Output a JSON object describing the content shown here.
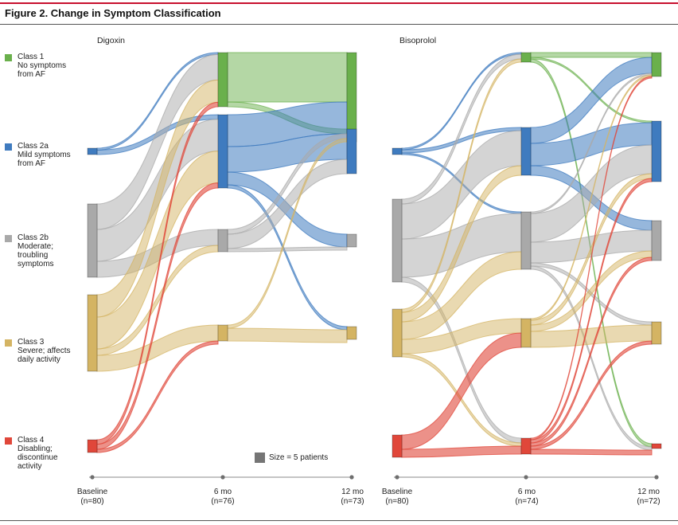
{
  "figure": {
    "title": "Figure 2. Change in Symptom Classification"
  },
  "legend": [
    {
      "key": "class1",
      "name": "Class 1",
      "desc": "No symptoms\nfrom AF",
      "color": "#6ab04c"
    },
    {
      "key": "class2a",
      "name": "Class 2a",
      "desc": "Mild symptoms\nfrom AF",
      "color": "#3f7bbf"
    },
    {
      "key": "class2b",
      "name": "Class 2b",
      "desc": "Moderate;\ntroubling\nsymptoms",
      "color": "#a9a9a9"
    },
    {
      "key": "class3",
      "name": "Class 3",
      "desc": "Severe; affects\ndaily activity",
      "color": "#d4b463"
    },
    {
      "key": "class4",
      "name": "Class 4",
      "desc": "Disabling;\ndiscontinue\nactivity",
      "color": "#e0473a"
    }
  ],
  "size_note": "Size = 5 patients",
  "chart_data": [
    {
      "type": "sankey",
      "title": "Digoxin",
      "stages": [
        {
          "name": "Baseline",
          "n": "(n=80)"
        },
        {
          "name": "6 mo",
          "n": "(n=76)"
        },
        {
          "name": "12 mo",
          "n": "(n=73)"
        }
      ],
      "nodes": [
        [
          {
            "cls": "class1",
            "value": 0
          },
          {
            "cls": "class2a",
            "value": 2
          },
          {
            "cls": "class2b",
            "value": 23
          },
          {
            "cls": "class3",
            "value": 24
          },
          {
            "cls": "class4",
            "value": 4
          }
        ],
        [
          {
            "cls": "class1",
            "value": 17
          },
          {
            "cls": "class2a",
            "value": 23
          },
          {
            "cls": "class2b",
            "value": 7
          },
          {
            "cls": "class3",
            "value": 5
          },
          {
            "cls": "class4",
            "value": 0
          }
        ],
        [
          {
            "cls": "class1",
            "value": 28
          },
          {
            "cls": "class2a",
            "value": 14
          },
          {
            "cls": "class2b",
            "value": 4
          },
          {
            "cls": "class3",
            "value": 4
          },
          {
            "cls": "class4",
            "value": 0
          }
        ]
      ],
      "flows": [
        [
          {
            "from": "class2a",
            "to": "class1",
            "value": 0.6
          },
          {
            "from": "class2a",
            "to": "class2a",
            "value": 1.4
          },
          {
            "from": "class2b",
            "to": "class1",
            "value": 8
          },
          {
            "from": "class2b",
            "to": "class2a",
            "value": 10
          },
          {
            "from": "class2b",
            "to": "class2b",
            "value": 5
          },
          {
            "from": "class3",
            "to": "class1",
            "value": 7
          },
          {
            "from": "class3",
            "to": "class2a",
            "value": 10
          },
          {
            "from": "class3",
            "to": "class2b",
            "value": 2
          },
          {
            "from": "class3",
            "to": "class3",
            "value": 5
          },
          {
            "from": "class4",
            "to": "class1",
            "value": 1.4
          },
          {
            "from": "class4",
            "to": "class2a",
            "value": 1.6
          },
          {
            "from": "class4",
            "to": "class3",
            "value": 1
          }
        ],
        [
          {
            "from": "class1",
            "to": "class1",
            "value": 15.5
          },
          {
            "from": "class1",
            "to": "class2a",
            "value": 1.5
          },
          {
            "from": "class2a",
            "to": "class1",
            "value": 10
          },
          {
            "from": "class2a",
            "to": "class2a",
            "value": 8
          },
          {
            "from": "class2a",
            "to": "class2b",
            "value": 4
          },
          {
            "from": "class2a",
            "to": "class3",
            "value": 1
          },
          {
            "from": "class2b",
            "to": "class1",
            "value": 1.5
          },
          {
            "from": "class2b",
            "to": "class2a",
            "value": 4.5
          },
          {
            "from": "class2b",
            "to": "class2b",
            "value": 1
          },
          {
            "from": "class3",
            "to": "class1",
            "value": 1
          },
          {
            "from": "class3",
            "to": "class3",
            "value": 4
          }
        ]
      ]
    },
    {
      "type": "sankey",
      "title": "Bisoprolol",
      "stages": [
        {
          "name": "Baseline",
          "n": "(n=80)"
        },
        {
          "name": "6 mo",
          "n": "(n=74)"
        },
        {
          "name": "12 mo",
          "n": "(n=72)"
        }
      ],
      "nodes": [
        [
          {
            "cls": "class1",
            "value": 0
          },
          {
            "cls": "class2a",
            "value": 2
          },
          {
            "cls": "class2b",
            "value": 26
          },
          {
            "cls": "class3",
            "value": 15
          },
          {
            "cls": "class4",
            "value": 7
          }
        ],
        [
          {
            "cls": "class1",
            "value": 3
          },
          {
            "cls": "class2a",
            "value": 15
          },
          {
            "cls": "class2b",
            "value": 18
          },
          {
            "cls": "class3",
            "value": 9
          },
          {
            "cls": "class4",
            "value": 5
          }
        ],
        [
          {
            "cls": "class1",
            "value": 7.5
          },
          {
            "cls": "class2a",
            "value": 19
          },
          {
            "cls": "class2b",
            "value": 12.5
          },
          {
            "cls": "class3",
            "value": 7
          },
          {
            "cls": "class4",
            "value": 1.5
          }
        ]
      ],
      "flows": [
        [
          {
            "from": "class2a",
            "to": "class1",
            "value": 0.5
          },
          {
            "from": "class2a",
            "to": "class2a",
            "value": 1
          },
          {
            "from": "class2a",
            "to": "class2b",
            "value": 0.5
          },
          {
            "from": "class2b",
            "to": "class1",
            "value": 1.5
          },
          {
            "from": "class2b",
            "to": "class2a",
            "value": 11
          },
          {
            "from": "class2b",
            "to": "class2b",
            "value": 12
          },
          {
            "from": "class2b",
            "to": "class4",
            "value": 1.5
          },
          {
            "from": "class3",
            "to": "class1",
            "value": 1
          },
          {
            "from": "class3",
            "to": "class2a",
            "value": 3
          },
          {
            "from": "class3",
            "to": "class2b",
            "value": 5.5
          },
          {
            "from": "class3",
            "to": "class3",
            "value": 4.5
          },
          {
            "from": "class3",
            "to": "class4",
            "value": 1
          },
          {
            "from": "class4",
            "to": "class3",
            "value": 4.5
          },
          {
            "from": "class4",
            "to": "class4",
            "value": 2.5
          }
        ],
        [
          {
            "from": "class1",
            "to": "class1",
            "value": 1.5
          },
          {
            "from": "class1",
            "to": "class2a",
            "value": 0.5
          },
          {
            "from": "class1",
            "to": "class4",
            "value": 1
          },
          {
            "from": "class2a",
            "to": "class1",
            "value": 5
          },
          {
            "from": "class2a",
            "to": "class2a",
            "value": 7
          },
          {
            "from": "class2a",
            "to": "class2b",
            "value": 3
          },
          {
            "from": "class2b",
            "to": "class1",
            "value": 0.5
          },
          {
            "from": "class2b",
            "to": "class2a",
            "value": 9
          },
          {
            "from": "class2b",
            "to": "class2b",
            "value": 6.5
          },
          {
            "from": "class2b",
            "to": "class3",
            "value": 1
          },
          {
            "from": "class2b",
            "to": "class4",
            "value": 1
          },
          {
            "from": "class3",
            "to": "class1",
            "value": 0.5
          },
          {
            "from": "class3",
            "to": "class2a",
            "value": 1.5
          },
          {
            "from": "class3",
            "to": "class2b",
            "value": 2
          },
          {
            "from": "class3",
            "to": "class3",
            "value": 5
          },
          {
            "from": "class4",
            "to": "class1",
            "value": 0.5
          },
          {
            "from": "class4",
            "to": "class2a",
            "value": 1
          },
          {
            "from": "class4",
            "to": "class2b",
            "value": 1
          },
          {
            "from": "class4",
            "to": "class3",
            "value": 1
          },
          {
            "from": "class4",
            "to": "class4",
            "value": 1.5
          }
        ]
      ]
    }
  ]
}
